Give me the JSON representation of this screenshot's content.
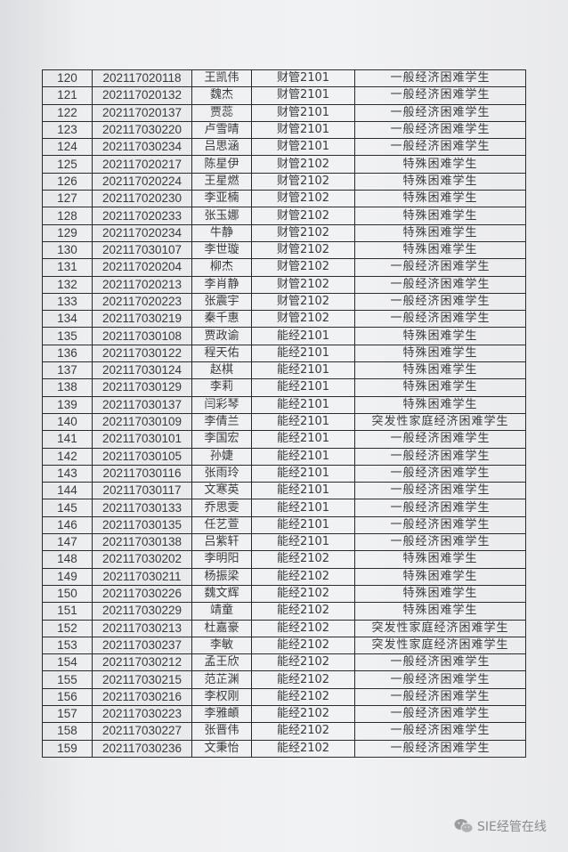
{
  "table": {
    "rows": [
      [
        "120",
        "202117020118",
        "王凯伟",
        "财管2101",
        "一般经济困难学生"
      ],
      [
        "121",
        "202117020132",
        "魏杰",
        "财管2101",
        "一般经济困难学生"
      ],
      [
        "122",
        "202117020137",
        "贾蕊",
        "财管2101",
        "一般经济困难学生"
      ],
      [
        "123",
        "202117030220",
        "卢雪晴",
        "财管2101",
        "一般经济困难学生"
      ],
      [
        "124",
        "202117030234",
        "吕思涵",
        "财管2101",
        "一般经济困难学生"
      ],
      [
        "125",
        "202117020217",
        "陈星伊",
        "财管2102",
        "特殊困难学生"
      ],
      [
        "126",
        "202117020224",
        "王星燃",
        "财管2102",
        "特殊困难学生"
      ],
      [
        "127",
        "202117020230",
        "李亚楠",
        "财管2102",
        "特殊困难学生"
      ],
      [
        "128",
        "202117020233",
        "张玉娜",
        "财管2102",
        "特殊困难学生"
      ],
      [
        "129",
        "202117020234",
        "牛静",
        "财管2102",
        "特殊困难学生"
      ],
      [
        "130",
        "202117030107",
        "李世璇",
        "财管2102",
        "特殊困难学生"
      ],
      [
        "131",
        "202117020204",
        "柳杰",
        "财管2102",
        "一般经济困难学生"
      ],
      [
        "132",
        "202117020213",
        "李肖静",
        "财管2102",
        "一般经济困难学生"
      ],
      [
        "133",
        "202117020223",
        "张震宇",
        "财管2102",
        "一般经济困难学生"
      ],
      [
        "134",
        "202117030219",
        "秦千惠",
        "财管2102",
        "一般经济困难学生"
      ],
      [
        "135",
        "202117030108",
        "贾政谕",
        "能经2101",
        "特殊困难学生"
      ],
      [
        "136",
        "202117030122",
        "程天佑",
        "能经2101",
        "特殊困难学生"
      ],
      [
        "137",
        "202117030124",
        "赵棋",
        "能经2101",
        "特殊困难学生"
      ],
      [
        "138",
        "202117030129",
        "李莉",
        "能经2101",
        "特殊困难学生"
      ],
      [
        "139",
        "202117030137",
        "闫彩琴",
        "能经2101",
        "特殊困难学生"
      ],
      [
        "140",
        "202117030109",
        "李倩兰",
        "能经2101",
        "突发性家庭经济困难学生"
      ],
      [
        "141",
        "202117030101",
        "李国宏",
        "能经2101",
        "一般经济困难学生"
      ],
      [
        "142",
        "202117030105",
        "孙婕",
        "能经2101",
        "一般经济困难学生"
      ],
      [
        "143",
        "202117030116",
        "张雨玲",
        "能经2101",
        "一般经济困难学生"
      ],
      [
        "144",
        "202117030117",
        "文寒英",
        "能经2101",
        "一般经济困难学生"
      ],
      [
        "145",
        "202117030133",
        "乔思雯",
        "能经2101",
        "一般经济困难学生"
      ],
      [
        "146",
        "202117030135",
        "任艺萱",
        "能经2101",
        "一般经济困难学生"
      ],
      [
        "147",
        "202117030138",
        "吕紫轩",
        "能经2101",
        "一般经济困难学生"
      ],
      [
        "148",
        "202117030202",
        "李明阳",
        "能经2102",
        "特殊困难学生"
      ],
      [
        "149",
        "202117030211",
        "杨振梁",
        "能经2102",
        "特殊困难学生"
      ],
      [
        "150",
        "202117030226",
        "魏文辉",
        "能经2102",
        "特殊困难学生"
      ],
      [
        "151",
        "202117030229",
        "靖童",
        "能经2102",
        "特殊困难学生"
      ],
      [
        "152",
        "202117030213",
        "杜嘉豪",
        "能经2102",
        "突发性家庭经济困难学生"
      ],
      [
        "153",
        "202117030237",
        "李敏",
        "能经2102",
        "突发性家庭经济困难学生"
      ],
      [
        "154",
        "202117030212",
        "孟王欣",
        "能经2102",
        "一般经济困难学生"
      ],
      [
        "155",
        "202117030215",
        "范芷渊",
        "能经2102",
        "一般经济困难学生"
      ],
      [
        "156",
        "202117030216",
        "李权刚",
        "能经2102",
        "一般经济困难学生"
      ],
      [
        "157",
        "202117030223",
        "李雅頔",
        "能经2102",
        "一般经济困难学生"
      ],
      [
        "158",
        "202117030227",
        "张晋伟",
        "能经2102",
        "一般经济困难学生"
      ],
      [
        "159",
        "202117030236",
        "文秉怡",
        "能经2102",
        "一般经济困难学生"
      ]
    ]
  },
  "watermark": {
    "text": "SIE经管在线",
    "icon": "wechat-icon"
  }
}
